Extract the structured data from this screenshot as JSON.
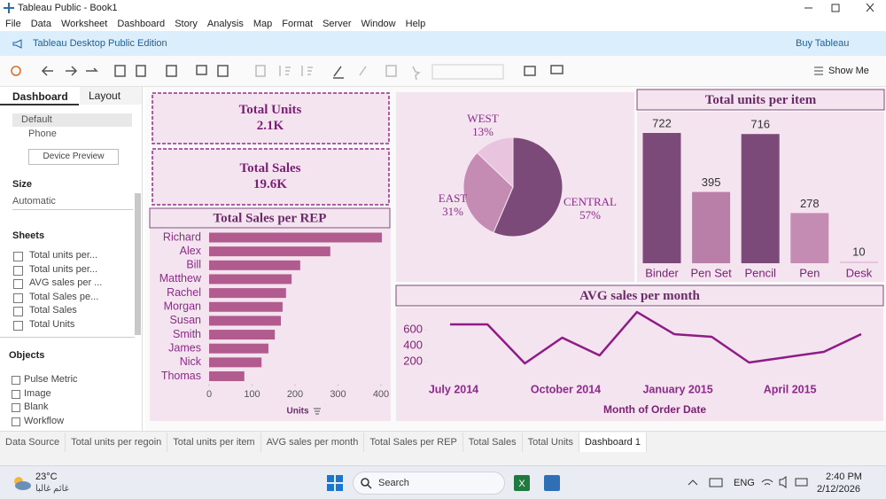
{
  "window": {
    "title": "Tableau Public - Book1"
  },
  "menu": [
    "File",
    "Data",
    "Worksheet",
    "Dashboard",
    "Story",
    "Analysis",
    "Map",
    "Format",
    "Server",
    "Window",
    "Help"
  ],
  "banner": {
    "edition": "Tableau Desktop Public Edition",
    "buy": "Buy Tableau"
  },
  "toolbar": {
    "show_me": "Show Me"
  },
  "side_panel": {
    "tabs": [
      "Dashboard",
      "Layout"
    ],
    "devices": [
      "Default",
      "Phone"
    ],
    "device_preview": "Device Preview",
    "size_heading": "Size",
    "size_value": "Automatic",
    "sheets_heading": "Sheets",
    "sheets": [
      "Total units per...",
      "Total units per...",
      "AVG sales per ...",
      "Total Sales pe...",
      "Total Sales",
      "Total Units"
    ],
    "objects_heading": "Objects",
    "objects": [
      "Pulse Metric",
      "Image",
      "Blank",
      "Workflow"
    ]
  },
  "kpis": [
    {
      "title": "Total Units",
      "value": "2.1K"
    },
    {
      "title": "Total Sales",
      "value": "19.6K"
    }
  ],
  "chart_data": [
    {
      "type": "hbar",
      "title": "Total Sales per REP",
      "categories": [
        "Richard",
        "Alex",
        "Bill",
        "Matthew",
        "Rachel",
        "Morgan",
        "Susan",
        "Smith",
        "James",
        "Nick",
        "Thomas"
      ],
      "values": [
        402,
        282,
        212,
        192,
        179,
        171,
        167,
        153,
        138,
        122,
        82
      ],
      "color": "#b15b8e",
      "xlim": [
        0,
        400
      ],
      "xticks": [
        0,
        100,
        200,
        300,
        400
      ],
      "xlabel": "Units"
    },
    {
      "type": "pie",
      "categories": [
        "CENTRAL",
        "EAST",
        "WEST"
      ],
      "values": [
        57,
        31,
        13
      ],
      "value_labels": [
        "57%",
        "31%",
        "13%"
      ],
      "colors": [
        "#7c4a78",
        "#c48bb3",
        "#e8c4de"
      ]
    },
    {
      "type": "bar",
      "title": "Total units per item",
      "categories": [
        "Binder",
        "Pen Set",
        "Pencil",
        "Pen",
        "Desk"
      ],
      "values": [
        722,
        395,
        716,
        278,
        10
      ],
      "colors": [
        "#7c4a78",
        "#b97fa9",
        "#7c4a78",
        "#c48bb3",
        "#e8c4de"
      ]
    },
    {
      "type": "line",
      "title": "AVG sales per month",
      "categories": [
        "July 2014",
        null,
        null,
        "October 2014",
        null,
        null,
        "January 2015",
        null,
        null,
        "April 2015",
        null,
        null
      ],
      "values": [
        667,
        667,
        178,
        500,
        278,
        822,
        544,
        511,
        189,
        256,
        322,
        544
      ],
      "color": "#8e1b86",
      "ylim": [
        0,
        1000
      ],
      "yticks": [
        200,
        400,
        600
      ],
      "xlabel": "Month of Order Date"
    }
  ],
  "sheet_tabs": [
    "Data Source",
    "Total units per regoin",
    "Total units per item",
    "AVG sales per month",
    "Total Sales per REP",
    "Total Sales",
    "Total Units",
    "Dashboard 1"
  ],
  "taskbar": {
    "temperature": "23°C",
    "weather": "غائم غالبا",
    "search": "Search",
    "language": "ENG",
    "time": "2:40 PM",
    "date": "2/12/2026"
  }
}
